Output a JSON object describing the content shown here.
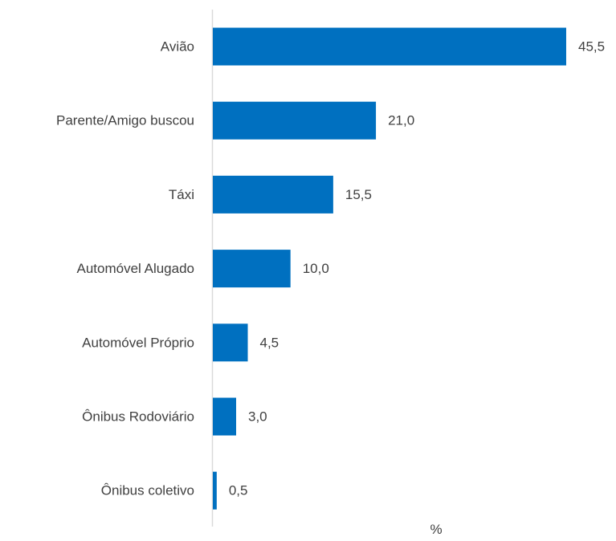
{
  "chart_data": {
    "type": "bar",
    "orientation": "horizontal",
    "categories": [
      "Avião",
      "Parente/Amigo buscou",
      "Táxi",
      "Automóvel Alugado",
      "Automóvel Próprio",
      "Ônibus Rodoviário",
      "Ônibus coletivo"
    ],
    "values": [
      45.5,
      21.0,
      15.5,
      10.0,
      4.5,
      3.0,
      0.5
    ],
    "value_labels": [
      "45,5",
      "21,0",
      "15,5",
      "10,0",
      "4,5",
      "3,0",
      "0,5"
    ],
    "title": "",
    "xlabel": "%",
    "ylabel": "",
    "xlim": [
      0,
      50
    ],
    "grid": false,
    "legend": "none",
    "bar_color": "#0070C0",
    "axis_color": "#D9D9D9",
    "text_color": "#404040"
  }
}
